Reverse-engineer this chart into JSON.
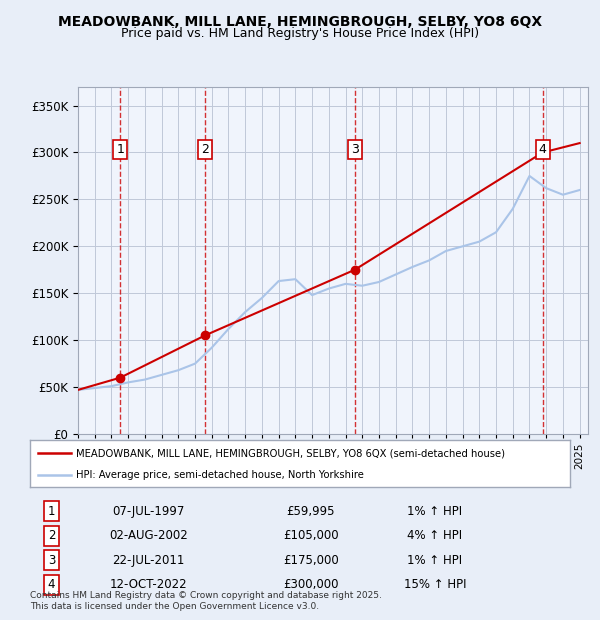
{
  "title": "MEADOWBANK, MILL LANE, HEMINGBROUGH, SELBY, YO8 6QX",
  "subtitle": "Price paid vs. HM Land Registry's House Price Index (HPI)",
  "legend_line1": "MEADOWBANK, MILL LANE, HEMINGBROUGH, SELBY, YO8 6QX (semi-detached house)",
  "legend_line2": "HPI: Average price, semi-detached house, North Yorkshire",
  "footer": "Contains HM Land Registry data © Crown copyright and database right 2025.\nThis data is licensed under the Open Government Licence v3.0.",
  "sales": [
    {
      "num": 1,
      "date": "07-JUL-1997",
      "price": 59995,
      "pct": "1%",
      "dir": "↑"
    },
    {
      "num": 2,
      "date": "02-AUG-2002",
      "price": 105000,
      "pct": "4%",
      "dir": "↑"
    },
    {
      "num": 3,
      "date": "22-JUL-2011",
      "price": 175000,
      "pct": "1%",
      "dir": "↑"
    },
    {
      "num": 4,
      "date": "12-OCT-2022",
      "price": 300000,
      "pct": "15%",
      "dir": "↑"
    }
  ],
  "sale_years": [
    1997.52,
    2002.59,
    2011.55,
    2022.79
  ],
  "hpi_years": [
    1995,
    1996,
    1997,
    1998,
    1999,
    2000,
    2001,
    2002,
    2003,
    2004,
    2005,
    2006,
    2007,
    2008,
    2009,
    2010,
    2011,
    2012,
    2013,
    2014,
    2015,
    2016,
    2017,
    2018,
    2019,
    2020,
    2021,
    2022,
    2023,
    2024,
    2025
  ],
  "hpi_values": [
    47000,
    49000,
    51000,
    55000,
    58000,
    63000,
    68000,
    75000,
    92000,
    112000,
    130000,
    145000,
    163000,
    165000,
    148000,
    155000,
    160000,
    158000,
    162000,
    170000,
    178000,
    185000,
    195000,
    200000,
    205000,
    215000,
    240000,
    275000,
    262000,
    255000,
    260000
  ],
  "price_line_years": [
    1995,
    1997.52,
    2002.59,
    2011.55,
    2022.79,
    2025
  ],
  "price_line_values": [
    47000,
    59995,
    105000,
    175000,
    300000,
    310000
  ],
  "ylim": [
    0,
    370000
  ],
  "xlim_min": 1995,
  "xlim_max": 2025.5,
  "bg_color": "#e8eef8",
  "plot_bg_color": "#f0f4fc",
  "grid_color": "#c0c8d8",
  "sale_line_color": "#cc0000",
  "hpi_line_color": "#aac4e8",
  "price_line_color": "#cc0000"
}
